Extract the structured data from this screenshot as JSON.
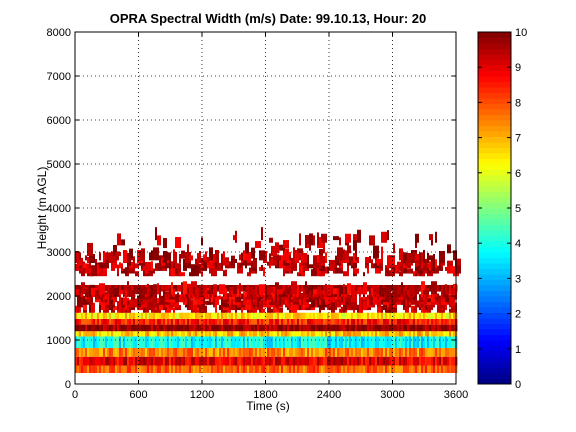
{
  "chart_data": {
    "type": "heatmap",
    "title": "OPRA Spectral Width (m/s)  Date: 99.10.13, Hour: 20",
    "xlabel": "Time (s)",
    "ylabel": "Height (m AGL)",
    "xlim": [
      0,
      3600
    ],
    "ylim": [
      0,
      8000
    ],
    "x_ticks": [
      "0",
      "600",
      "1200",
      "1800",
      "2400",
      "3000",
      "3600"
    ],
    "y_ticks": [
      "0",
      "1000",
      "2000",
      "3000",
      "4000",
      "5000",
      "6000",
      "7000",
      "8000"
    ],
    "grid": true,
    "colorbar": {
      "label_values": [
        "0",
        "1",
        "2",
        "3",
        "4",
        "5",
        "6",
        "7",
        "8",
        "9",
        "10"
      ],
      "range": [
        0,
        10
      ],
      "colormap": "jet"
    },
    "bands": [
      {
        "height_from": 250,
        "height_to": 420,
        "value": 7.8
      },
      {
        "height_from": 420,
        "height_to": 620,
        "value": 9.0
      },
      {
        "height_from": 620,
        "height_to": 820,
        "value": 7.5
      },
      {
        "height_from": 820,
        "height_to": 1080,
        "value": 3.8
      },
      {
        "height_from": 1080,
        "height_to": 1200,
        "value": 6.8
      },
      {
        "height_from": 1200,
        "height_to": 1350,
        "value": 9.8
      },
      {
        "height_from": 1350,
        "height_to": 1480,
        "value": 8.5
      },
      {
        "height_from": 1480,
        "height_to": 1620,
        "value": 6.5
      },
      {
        "height_from": 2100,
        "height_to": 2250,
        "value": 9.8
      }
    ],
    "scatter_layers": [
      {
        "height_from": 1620,
        "height_to": 2100,
        "value": 9.6,
        "density": 0.35
      },
      {
        "height_from": 2450,
        "height_to": 2850,
        "value": 9.7,
        "density": 0.25
      },
      {
        "height_from": 2850,
        "height_to": 3300,
        "value": 9.8,
        "density": 0.03
      }
    ]
  }
}
